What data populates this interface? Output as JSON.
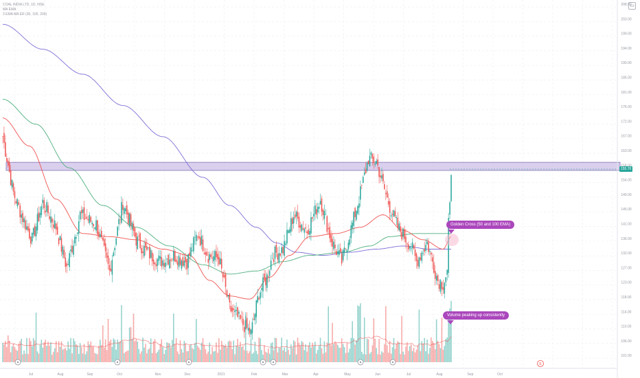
{
  "legend": {
    "symbol_line": "COAL INDIA LTD, 1D, NSE",
    "ma_line": "MA EMA",
    "ribbon_line": "3 EMA MA ER (30, 100, 200)"
  },
  "price_tag": "155.70",
  "annotations": {
    "golden_cross": "Golden Cross (50 and 100 EMA)",
    "volume": "Volume peaking up consistently"
  },
  "event_marker": "E",
  "colors": {
    "up": "#26a69a",
    "down": "#ef5350",
    "ema50": "#ef5350",
    "ema100": "#4caf7d",
    "ema200": "#7e6fd6",
    "zone_fill": "#d1c4e9",
    "zone_border": "#5e4fa2",
    "callout": "#ab47bc",
    "price_tag": "#26a69a"
  },
  "chart_data": {
    "type": "candlestick",
    "period": "1D",
    "x_tick_labels": [
      "Jul",
      "Aug",
      "Sep",
      "Oct",
      "Nov",
      "Dec",
      "2021",
      "Feb",
      "Mar",
      "Apr",
      "May",
      "Jun",
      "Jul",
      "Aug",
      "Sep",
      "Oct"
    ],
    "y_tick_labels": [
      "208.00",
      "203.00",
      "199.00",
      "194.00",
      "190.00",
      "185.00",
      "181.00",
      "176.00",
      "172.00",
      "167.00",
      "163.00",
      "158.00",
      "154.00",
      "149.00",
      "145.00",
      "141.00",
      "136.00",
      "132.00",
      "127.00",
      "123.00",
      "118.00",
      "114.00",
      "110.00",
      "106.00",
      "101.00"
    ],
    "ylim": [
      98,
      210
    ],
    "resistance_zone": [
      157.2,
      159.8
    ],
    "last_price": 155.7,
    "ohlc_anchor_path": [
      [
        0,
        168
      ],
      [
        8,
        150
      ],
      [
        15,
        142
      ],
      [
        22,
        135
      ],
      [
        30,
        147
      ],
      [
        40,
        139
      ],
      [
        48,
        126
      ],
      [
        58,
        143
      ],
      [
        70,
        140
      ],
      [
        80,
        125
      ],
      [
        90,
        147
      ],
      [
        100,
        135
      ],
      [
        108,
        131
      ],
      [
        118,
        128
      ],
      [
        128,
        130
      ],
      [
        138,
        128
      ],
      [
        146,
        137
      ],
      [
        154,
        130
      ],
      [
        162,
        129
      ],
      [
        170,
        113
      ],
      [
        180,
        108
      ],
      [
        186,
        105
      ],
      [
        192,
        118
      ],
      [
        198,
        123
      ],
      [
        202,
        130
      ],
      [
        210,
        132
      ],
      [
        218,
        143
      ],
      [
        228,
        138
      ],
      [
        238,
        148
      ],
      [
        246,
        135
      ],
      [
        254,
        128
      ],
      [
        262,
        140
      ],
      [
        268,
        150
      ],
      [
        274,
        161
      ],
      [
        280,
        160
      ],
      [
        288,
        148
      ],
      [
        296,
        139
      ],
      [
        306,
        133
      ],
      [
        310,
        128
      ],
      [
        318,
        134
      ],
      [
        326,
        122
      ],
      [
        330,
        121
      ],
      [
        336,
        128
      ]
    ],
    "volume_profile_note": "",
    "ema_anchor_paths": {
      "ema50": [
        [
          0,
          174
        ],
        [
          20,
          165
        ],
        [
          40,
          148
        ],
        [
          60,
          137
        ],
        [
          80,
          136
        ],
        [
          100,
          135
        ],
        [
          120,
          132
        ],
        [
          140,
          130
        ],
        [
          155,
          122
        ],
        [
          170,
          117
        ],
        [
          185,
          116
        ],
        [
          200,
          123
        ],
        [
          215,
          130
        ],
        [
          230,
          136
        ],
        [
          250,
          137
        ],
        [
          268,
          139
        ],
        [
          285,
          143
        ],
        [
          300,
          138
        ],
        [
          315,
          135
        ],
        [
          330,
          132
        ],
        [
          336,
          136
        ]
      ],
      "ema100": [
        [
          0,
          180
        ],
        [
          25,
          172
        ],
        [
          50,
          158
        ],
        [
          75,
          146
        ],
        [
          100,
          139
        ],
        [
          125,
          133
        ],
        [
          150,
          127
        ],
        [
          170,
          124
        ],
        [
          190,
          125
        ],
        [
          210,
          128
        ],
        [
          230,
          130
        ],
        [
          255,
          131
        ],
        [
          275,
          133
        ],
        [
          290,
          136
        ],
        [
          310,
          137
        ],
        [
          336,
          137
        ]
      ],
      "ema200": [
        [
          0,
          204
        ],
        [
          30,
          196
        ],
        [
          60,
          188
        ],
        [
          90,
          178
        ],
        [
          120,
          168
        ],
        [
          150,
          155
        ],
        [
          170,
          146
        ],
        [
          190,
          139
        ],
        [
          205,
          134
        ],
        [
          220,
          131
        ],
        [
          240,
          130
        ],
        [
          260,
          131
        ],
        [
          280,
          132
        ],
        [
          300,
          133
        ],
        [
          320,
          132
        ],
        [
          336,
          132
        ]
      ]
    }
  }
}
